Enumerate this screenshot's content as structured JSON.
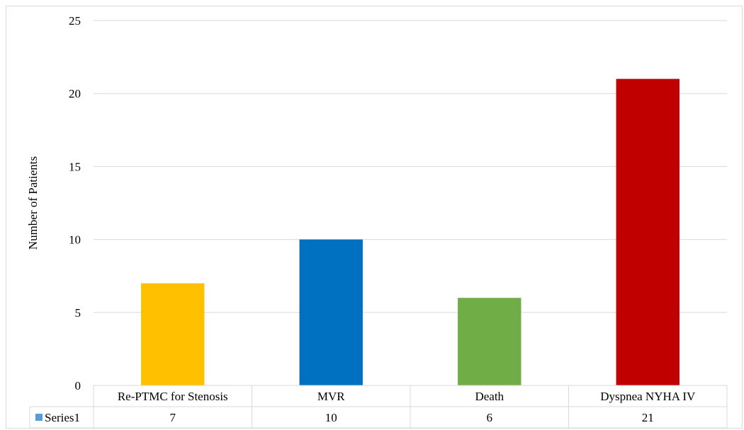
{
  "chart_data": {
    "type": "bar",
    "title": "",
    "xlabel": "",
    "ylabel": "Number of Patients",
    "ylim": [
      0,
      25
    ],
    "yticks": [
      0,
      5,
      10,
      15,
      20,
      25
    ],
    "grid": true,
    "legend_position": "data-table",
    "categories": [
      "Re-PTMC for Stenosis",
      "MVR",
      "Death",
      "Dyspnea NYHA IV"
    ],
    "series": [
      {
        "name": "Series1",
        "values": [
          7,
          10,
          6,
          21
        ],
        "point_colors": [
          "#ffc000",
          "#0070c0",
          "#70ad47",
          "#c00000"
        ],
        "legend_color": "#5b9bd5"
      }
    ]
  }
}
